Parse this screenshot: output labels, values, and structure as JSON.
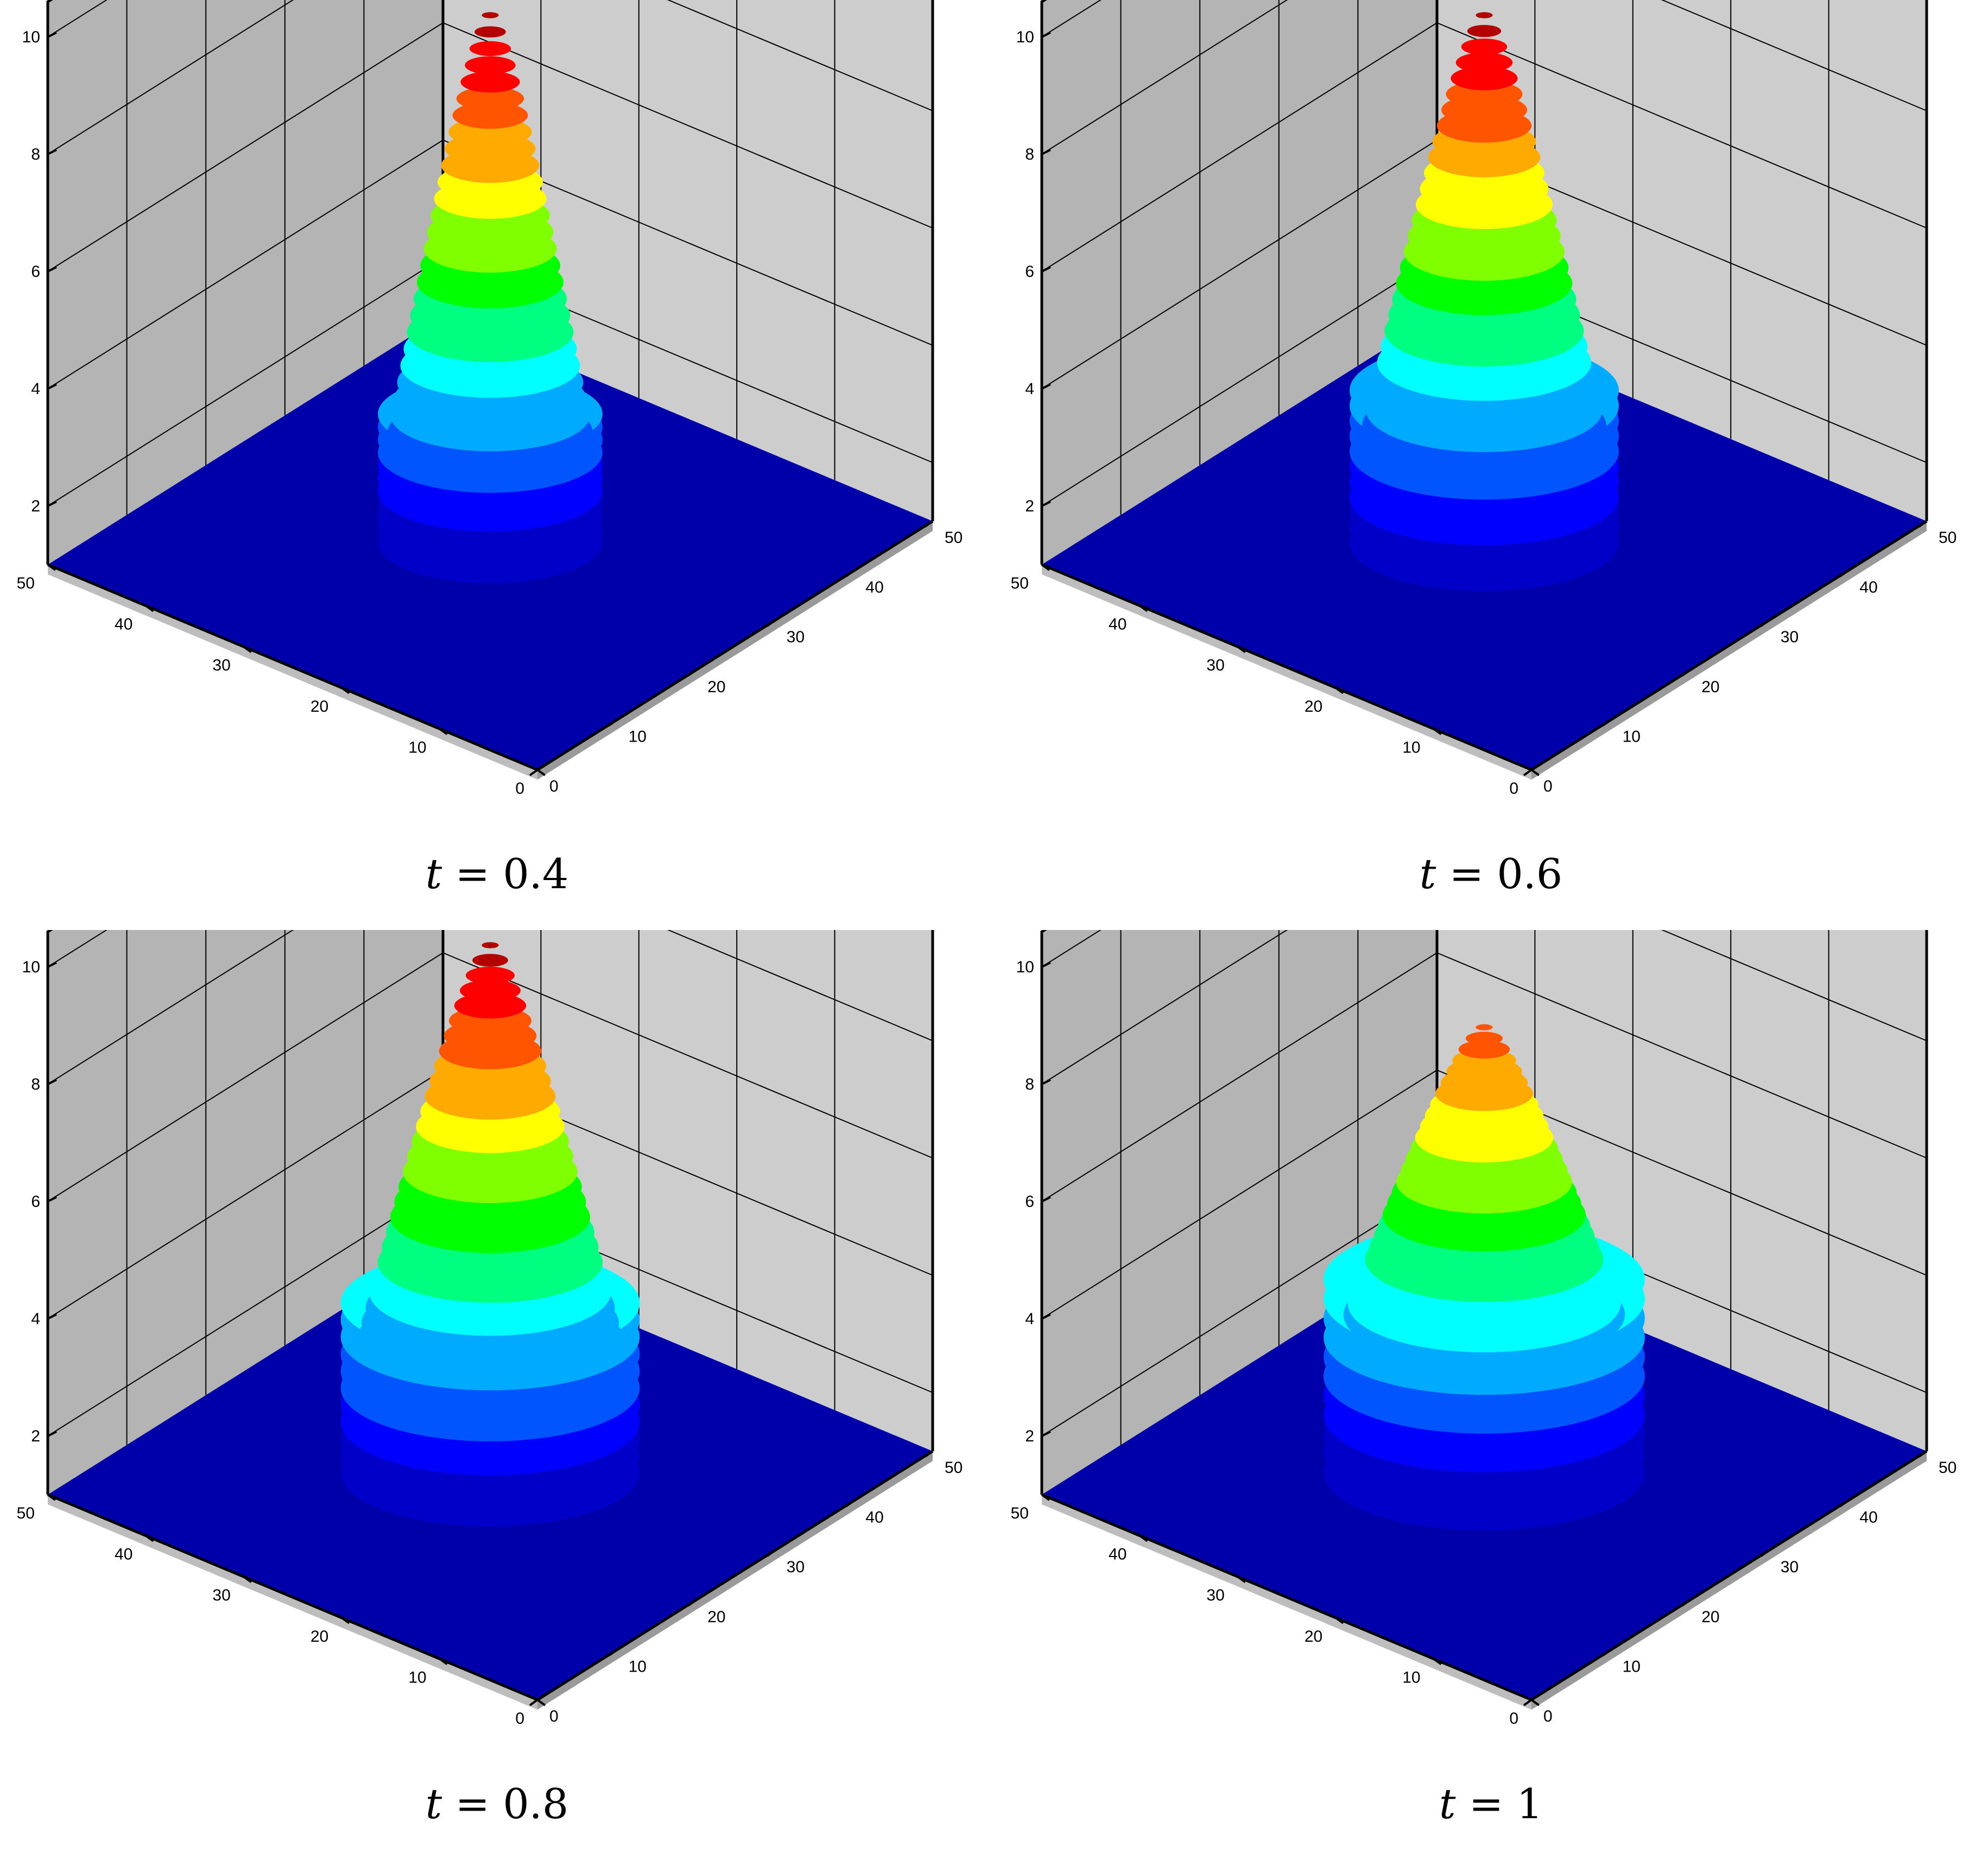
{
  "colors": {
    "wall_left": "#b4b4b4",
    "wall_right": "#cdcdcd",
    "floor": "#0000aa",
    "colormap": [
      "#0000c8",
      "#0000ff",
      "#0055ff",
      "#00aaff",
      "#00ffff",
      "#00ff80",
      "#00ff00",
      "#80ff00",
      "#ffff00",
      "#ffaa00",
      "#ff5500",
      "#ff0000",
      "#b40000"
    ]
  },
  "chart_data": [
    {
      "type": "surface",
      "caption": {
        "lhs": "t",
        "rhs": "0.4"
      },
      "x_ticks": [
        "0",
        "10",
        "20",
        "30",
        "40",
        "50"
      ],
      "y_ticks": [
        "0",
        "10",
        "20",
        "30",
        "40",
        "50"
      ],
      "z_ticks": [
        "2",
        "4",
        "6",
        "8",
        "10"
      ],
      "xlim": [
        0,
        50
      ],
      "ylim": [
        0,
        50
      ],
      "zlim": [
        1,
        10
      ],
      "grid": true,
      "peak_height": 10.0,
      "ring": {
        "height": 3.2,
        "radius": 14.5
      }
    },
    {
      "type": "surface",
      "caption": {
        "lhs": "t",
        "rhs": "0.6"
      },
      "x_ticks": [
        "0",
        "10",
        "20",
        "30",
        "40",
        "50"
      ],
      "y_ticks": [
        "0",
        "10",
        "20",
        "30",
        "40",
        "50"
      ],
      "z_ticks": [
        "2",
        "4",
        "6",
        "8",
        "10"
      ],
      "xlim": [
        0,
        50
      ],
      "ylim": [
        0,
        50
      ],
      "zlim": [
        1,
        10
      ],
      "grid": true,
      "peak_height": 10.0,
      "ring": {
        "height": 3.6,
        "radius": 17.5
      }
    },
    {
      "type": "surface",
      "caption": {
        "lhs": "t",
        "rhs": "0.8"
      },
      "x_ticks": [
        "0",
        "10",
        "20",
        "30",
        "40",
        "50"
      ],
      "y_ticks": [
        "0",
        "10",
        "20",
        "30",
        "40",
        "50"
      ],
      "z_ticks": [
        "2",
        "4",
        "6",
        "8",
        "10"
      ],
      "xlim": [
        0,
        50
      ],
      "ylim": [
        0,
        50
      ],
      "zlim": [
        1,
        10
      ],
      "grid": true,
      "peak_height": 10.0,
      "ring": {
        "height": 3.9,
        "radius": 19.5
      }
    },
    {
      "type": "surface",
      "caption": {
        "lhs": "t",
        "rhs": "1"
      },
      "x_ticks": [
        "0",
        "10",
        "20",
        "30",
        "40",
        "50"
      ],
      "y_ticks": [
        "0",
        "10",
        "20",
        "30",
        "40",
        "50"
      ],
      "z_ticks": [
        "2",
        "4",
        "6",
        "8",
        "10"
      ],
      "xlim": [
        0,
        50
      ],
      "ylim": [
        0,
        50
      ],
      "zlim": [
        1,
        10
      ],
      "grid": true,
      "peak_height": 8.6,
      "ring": {
        "height": 4.3,
        "radius": 21.0
      }
    }
  ]
}
